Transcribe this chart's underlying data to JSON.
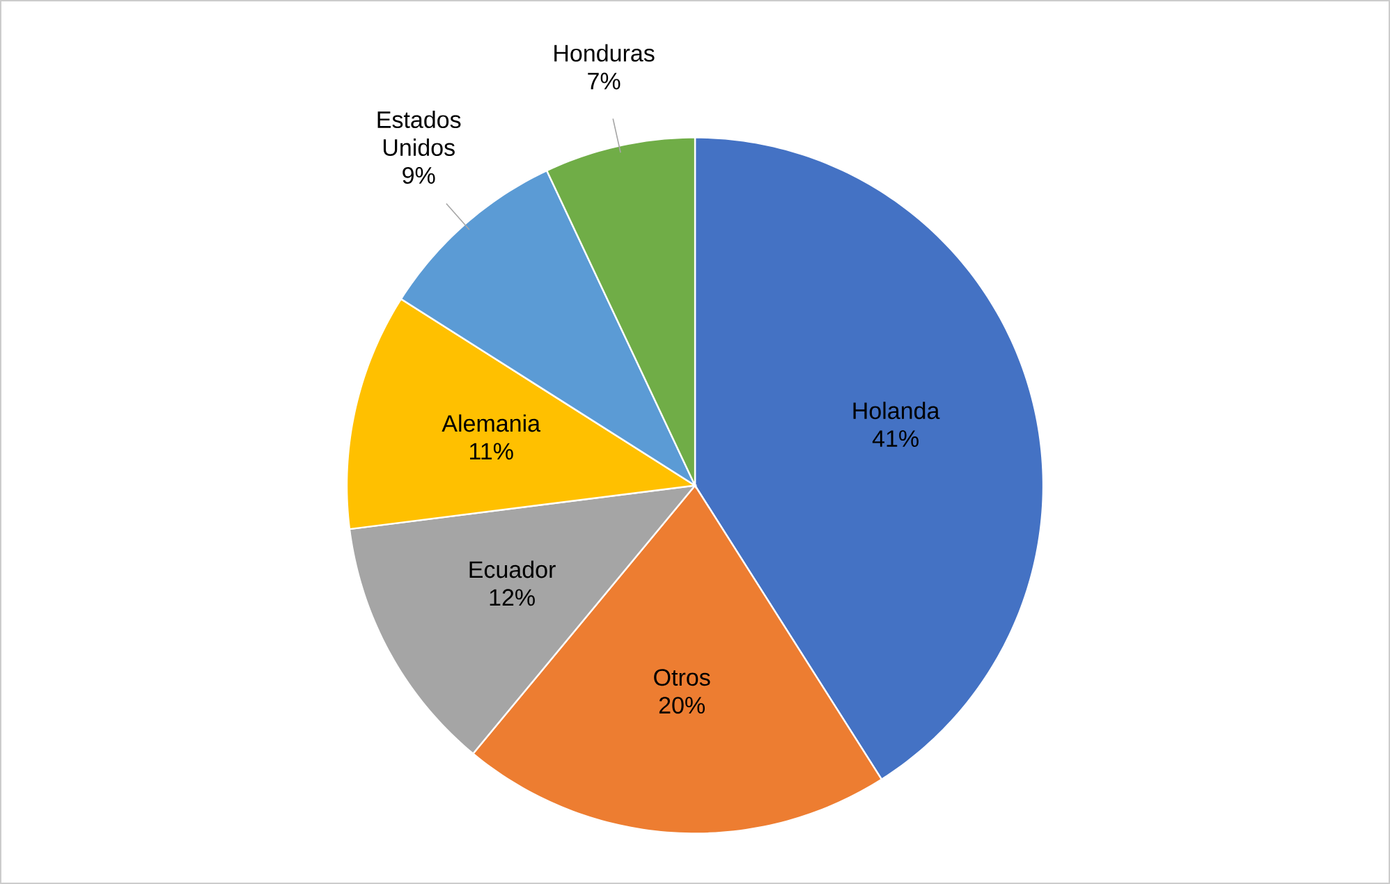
{
  "chart_data": {
    "type": "pie",
    "categories": [
      "Holanda",
      "Otros",
      "Ecuador",
      "Alemania",
      "Estados Unidos",
      "Honduras"
    ],
    "values": [
      41,
      20,
      12,
      11,
      9,
      7
    ],
    "value_labels": [
      "41%",
      "20%",
      "12%",
      "11%",
      "9%",
      "7%"
    ],
    "colors": [
      "#4472c4",
      "#ed7d31",
      "#a5a5a5",
      "#ffc000",
      "#5b9bd5",
      "#70ad47"
    ]
  }
}
